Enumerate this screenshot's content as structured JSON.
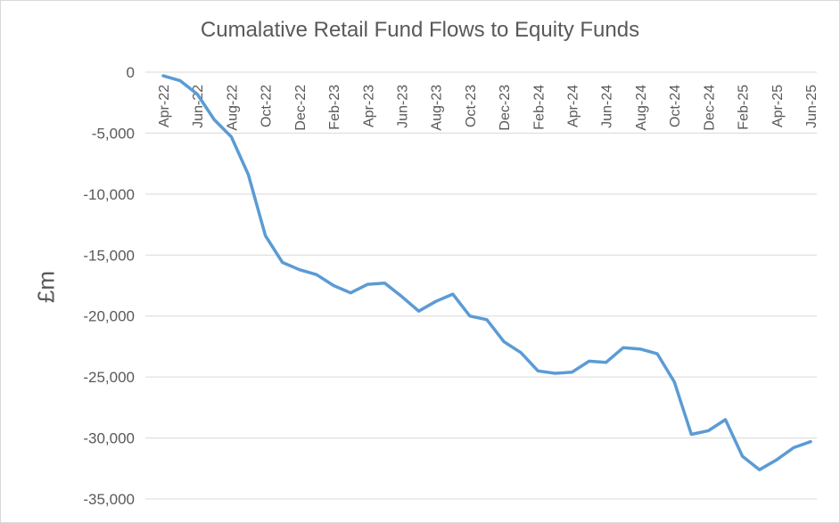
{
  "chart_data": {
    "type": "line",
    "title": "Cumalative Retail Fund Flows to Equity Funds",
    "ylabel": "£m",
    "xlabel": "",
    "ylim": [
      -35000,
      0
    ],
    "yticks": [
      0,
      -5000,
      -10000,
      -15000,
      -20000,
      -25000,
      -30000,
      -35000
    ],
    "ytick_labels": [
      "0",
      "-5,000",
      "-10,000",
      "-15,000",
      "-20,000",
      "-25,000",
      "-30,000",
      "-35,000"
    ],
    "xtick_labels": [
      "Apr-22",
      "Jun-22",
      "Aug-22",
      "Oct-22",
      "Dec-22",
      "Feb-23",
      "Apr-23",
      "Jun-23",
      "Aug-23",
      "Oct-23",
      "Dec-23",
      "Feb-24",
      "Apr-24",
      "Jun-24",
      "Aug-24",
      "Oct-24",
      "Dec-24",
      "Feb-25",
      "Apr-25",
      "Jun-25"
    ],
    "grid": true,
    "line_color": "#5b9bd5",
    "series": [
      {
        "x": [
          "Apr-22",
          "May-22",
          "Jun-22",
          "Jul-22",
          "Aug-22",
          "Sep-22",
          "Oct-22",
          "Nov-22",
          "Dec-22",
          "Jan-23",
          "Feb-23",
          "Mar-23",
          "Apr-23",
          "May-23",
          "Jun-23",
          "Jul-23",
          "Aug-23",
          "Sep-23",
          "Oct-23",
          "Nov-23",
          "Dec-23",
          "Jan-24",
          "Feb-24",
          "Mar-24",
          "Apr-24",
          "May-24",
          "Jun-24",
          "Jul-24",
          "Aug-24",
          "Sep-24",
          "Oct-24",
          "Nov-24",
          "Dec-24",
          "Jan-25",
          "Feb-25",
          "Mar-25",
          "Apr-25",
          "May-25",
          "Jun-25"
        ],
        "values": [
          -300,
          -700,
          -1800,
          -3900,
          -5300,
          -8400,
          -13400,
          -15600,
          -16200,
          -16600,
          -17500,
          -18100,
          -17400,
          -17300,
          -18400,
          -19600,
          -18800,
          -18200,
          -20000,
          -20300,
          -22100,
          -23000,
          -24500,
          -24700,
          -24600,
          -23700,
          -23800,
          -22600,
          -22700,
          -23100,
          -25400,
          -29700,
          -29400,
          -28500,
          -31500,
          -32600,
          -31800,
          -30800,
          -30300
        ]
      }
    ]
  }
}
